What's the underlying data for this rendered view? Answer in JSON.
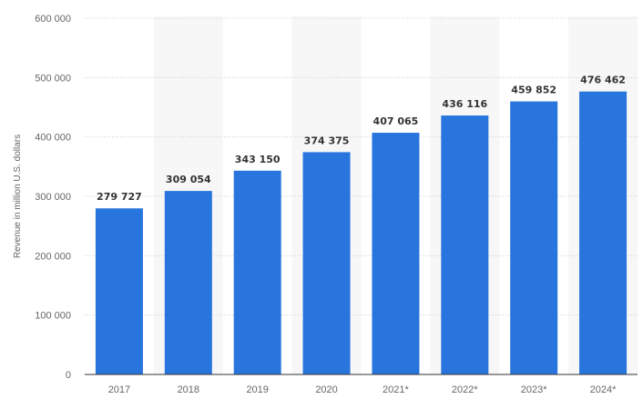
{
  "chart_data": {
    "type": "bar",
    "title": "",
    "xlabel": "",
    "ylabel": "Revenue in million U.S. dollars",
    "categories": [
      "2017",
      "2018",
      "2019",
      "2020",
      "2021*",
      "2022*",
      "2023*",
      "2024*"
    ],
    "values": [
      279727,
      309054,
      343150,
      374375,
      407065,
      436116,
      459852,
      476462
    ],
    "data_labels": [
      "279 727",
      "309 054",
      "343 150",
      "374 375",
      "407 065",
      "436 116",
      "459 852",
      "476 462"
    ],
    "yticks": [
      0,
      100000,
      200000,
      300000,
      400000,
      500000,
      600000
    ],
    "ytick_labels": [
      "0",
      "100 000",
      "200 000",
      "300 000",
      "400 000",
      "500 000",
      "600 000"
    ],
    "ylim": [
      0,
      600000
    ],
    "grid": true,
    "bar_color": "#2875dd",
    "alt_band_color": "#f7f7f7",
    "grid_color": "#cccccc",
    "axis_color": "#333333"
  }
}
